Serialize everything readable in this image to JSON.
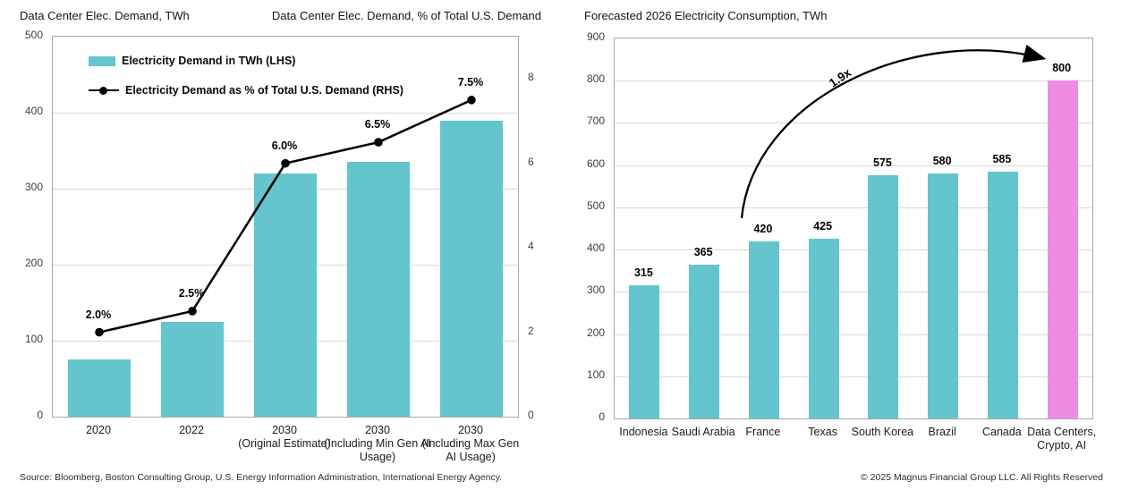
{
  "footer": {
    "source": "Source: Bloomberg, Boston Consulting Group, U.S. Energy Information Administration, International Energy Agency.",
    "copyright": "© 2025 Magnus Financial Group LLC. All Rights Reserved"
  },
  "colors": {
    "teal": "#64c5ce",
    "pink": "#ee8ce2",
    "line": "#000000",
    "grid": "#d9d9d9",
    "plot_border": "#a9a9a9"
  },
  "chart_data": [
    {
      "type": "bar",
      "subtype": "dual-axis bar + line",
      "title_left": "Data Center Elec. Demand, TWh",
      "title_right": "Data Center Elec. Demand, % of Total U.S. Demand",
      "categories": [
        "2020",
        "2022",
        "2030 (Original Estimate)",
        "2030 (Including Min Gen AI Usage)",
        "2030 (Including Max Gen AI Usage)"
      ],
      "category_lines": [
        [
          "2020"
        ],
        [
          "2022"
        ],
        [
          "2030",
          "(Original Estimate)"
        ],
        [
          "2030",
          "(Including Min Gen AI",
          "Usage)"
        ],
        [
          "2030",
          "(Including Max Gen",
          "AI Usage)"
        ]
      ],
      "series": [
        {
          "name": "Electricity Demand in TWh (LHS)",
          "type": "bar",
          "axis": "left",
          "color": "#64c5ce",
          "values": [
            75,
            125,
            320,
            335,
            390
          ]
        },
        {
          "name": "Electricity Demand as % of Total U.S. Demand (RHS)",
          "type": "line",
          "axis": "right",
          "color": "#000000",
          "values": [
            2.0,
            2.5,
            6.0,
            6.5,
            7.5
          ],
          "point_labels": [
            "2.0%",
            "2.5%",
            "6.0%",
            "6.5%",
            "7.5%"
          ]
        }
      ],
      "left_axis": {
        "min": 0,
        "max": 500,
        "ticks": [
          0,
          100,
          200,
          300,
          400,
          500
        ]
      },
      "right_axis": {
        "min": 0,
        "max": 9,
        "ticks": [
          0,
          2,
          4,
          6,
          8
        ]
      },
      "grid": true,
      "legend_position": "top-left-inside"
    },
    {
      "type": "bar",
      "title": "Forecasted 2026 Electricity Consumption, TWh",
      "categories": [
        "Indonesia",
        "Saudi Arabia",
        "France",
        "Texas",
        "South Korea",
        "Brazil",
        "Canada",
        "Data Centers, Crypto, AI"
      ],
      "category_lines": [
        [
          "Indonesia"
        ],
        [
          "Saudi Arabia"
        ],
        [
          "France"
        ],
        [
          "Texas"
        ],
        [
          "South Korea"
        ],
        [
          "Brazil"
        ],
        [
          "Canada"
        ],
        [
          "Data Centers,",
          "Crypto, AI"
        ]
      ],
      "values": [
        315,
        365,
        420,
        425,
        575,
        580,
        585,
        800
      ],
      "value_labels": [
        "315",
        "365",
        "420",
        "425",
        "575",
        "580",
        "585",
        "800"
      ],
      "bar_color_default": "#64c5ce",
      "highlight_index": 7,
      "highlight_color": "#ee8ce2",
      "y_axis": {
        "min": 0,
        "max": 900,
        "ticks": [
          0,
          100,
          200,
          300,
          400,
          500,
          600,
          700,
          800,
          900
        ]
      },
      "grid": true,
      "annotation": {
        "text": "1.9x",
        "from_category": "France",
        "from_value": 420,
        "to_category": "Data Centers, Crypto, AI",
        "to_value": 800
      }
    }
  ]
}
